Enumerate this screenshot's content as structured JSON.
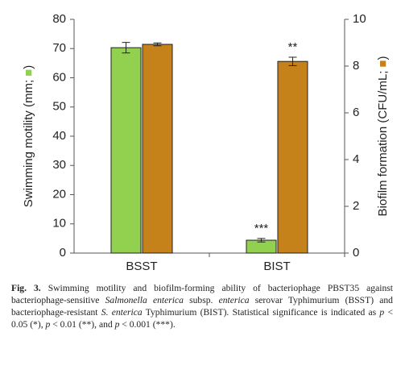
{
  "chart_data": {
    "type": "bar",
    "categories": [
      "BSST",
      "BIST"
    ],
    "ylabel": {
      "text": "Swimming motility (mm;",
      "marker": "■",
      "close": ")"
    },
    "y2label": {
      "text": "Biofilm formation (CFU/mL;",
      "marker": "■",
      "close": ")"
    },
    "ylim": [
      0,
      80
    ],
    "yticks": [
      0,
      10,
      20,
      30,
      40,
      50,
      60,
      70,
      80
    ],
    "y2lim": [
      0,
      10
    ],
    "y2ticks": [
      0,
      2,
      4,
      6,
      8,
      10
    ],
    "series": [
      {
        "color": "#92d050",
        "values": [
          70.3,
          4.4
        ],
        "errors": [
          1.8,
          0.6
        ],
        "significance": [
          null,
          "***"
        ]
      },
      {
        "color": "#c5811a",
        "axis": "y2",
        "values": [
          8.93,
          8.2
        ],
        "errors": [
          0.06,
          0.18
        ],
        "significance": [
          null,
          "**"
        ]
      }
    ]
  },
  "caption": [
    {
      "text": "Fig. 3.",
      "style": "bold"
    },
    {
      "text": " Swimming motility and biofilm-forming ability of bacteriophage PBST35 against bacteriophage-sensitive ",
      "style": "normal"
    },
    {
      "text": "Salmonella enterica",
      "style": "italic"
    },
    {
      "text": " subsp. ",
      "style": "normal"
    },
    {
      "text": "enterica",
      "style": "italic"
    },
    {
      "text": " serovar Typhimurium (BSST) and bacteriophage-resistant ",
      "style": "normal"
    },
    {
      "text": "S. enterica",
      "style": "italic"
    },
    {
      "text": " Typhimurium (BIST). Statistical significance is indicated as ",
      "style": "normal"
    },
    {
      "text": "p",
      "style": "italic"
    },
    {
      "text": " < 0.05 (*), ",
      "style": "normal"
    },
    {
      "text": "p",
      "style": "italic"
    },
    {
      "text": " < 0.01 (**), and ",
      "style": "normal"
    },
    {
      "text": "p",
      "style": "italic"
    },
    {
      "text": " < 0.001 (***).",
      "style": "normal"
    }
  ]
}
